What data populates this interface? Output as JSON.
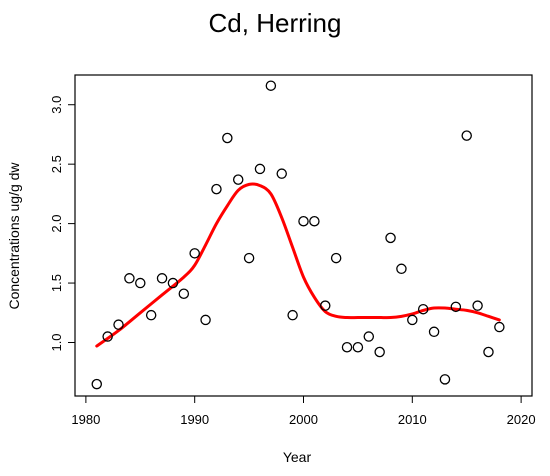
{
  "chart_data": {
    "type": "scatter",
    "title": "Cd, Herring",
    "xlabel": "Year",
    "ylabel": "Concentrations ug/g dw",
    "xlim": [
      1979,
      2021
    ],
    "ylim": [
      0.55,
      3.25
    ],
    "xticks": [
      1980,
      1990,
      2000,
      2010,
      2020
    ],
    "yticks": [
      1.0,
      1.5,
      2.0,
      2.5,
      3.0
    ],
    "ytick_labels": [
      "1.0",
      "1.5",
      "2.0",
      "2.5",
      "3.0"
    ],
    "grid": false,
    "series": [
      {
        "type": "scatter",
        "marker": "open-circle",
        "color": "#000000",
        "x": [
          1981,
          1982,
          1983,
          1984,
          1985,
          1986,
          1987,
          1988,
          1989,
          1990,
          1991,
          1992,
          1993,
          1994,
          1995,
          1996,
          1997,
          1998,
          1999,
          2000,
          2001,
          2002,
          2003,
          2004,
          2005,
          2006,
          2007,
          2008,
          2009,
          2010,
          2011,
          2012,
          2013,
          2014,
          2015,
          2016,
          2017,
          2018
        ],
        "y": [
          0.65,
          1.05,
          1.15,
          1.54,
          1.5,
          1.23,
          1.54,
          1.5,
          1.41,
          1.75,
          1.19,
          2.29,
          2.72,
          2.37,
          1.71,
          2.46,
          3.16,
          2.42,
          1.23,
          2.02,
          2.02,
          1.31,
          1.71,
          0.96,
          0.96,
          1.05,
          0.92,
          1.88,
          1.62,
          1.19,
          1.28,
          1.09,
          0.69,
          1.3,
          2.74,
          1.31,
          0.92,
          1.13
        ]
      },
      {
        "type": "line",
        "color": "#ff0000",
        "x": [
          1981,
          1983,
          1985,
          1987,
          1989,
          1990,
          1991,
          1992,
          1993,
          1994,
          1995,
          1996,
          1997,
          1998,
          1999,
          2000,
          2001,
          2002,
          2003,
          2004,
          2005,
          2006,
          2007,
          2008,
          2009,
          2010,
          2011,
          2012,
          2013,
          2014,
          2015,
          2016,
          2017,
          2018
        ],
        "y": [
          0.97,
          1.1,
          1.25,
          1.4,
          1.55,
          1.65,
          1.82,
          2.0,
          2.15,
          2.28,
          2.33,
          2.32,
          2.25,
          2.05,
          1.8,
          1.55,
          1.38,
          1.26,
          1.22,
          1.21,
          1.21,
          1.21,
          1.21,
          1.21,
          1.22,
          1.24,
          1.27,
          1.29,
          1.29,
          1.28,
          1.27,
          1.25,
          1.22,
          1.19
        ]
      }
    ]
  }
}
